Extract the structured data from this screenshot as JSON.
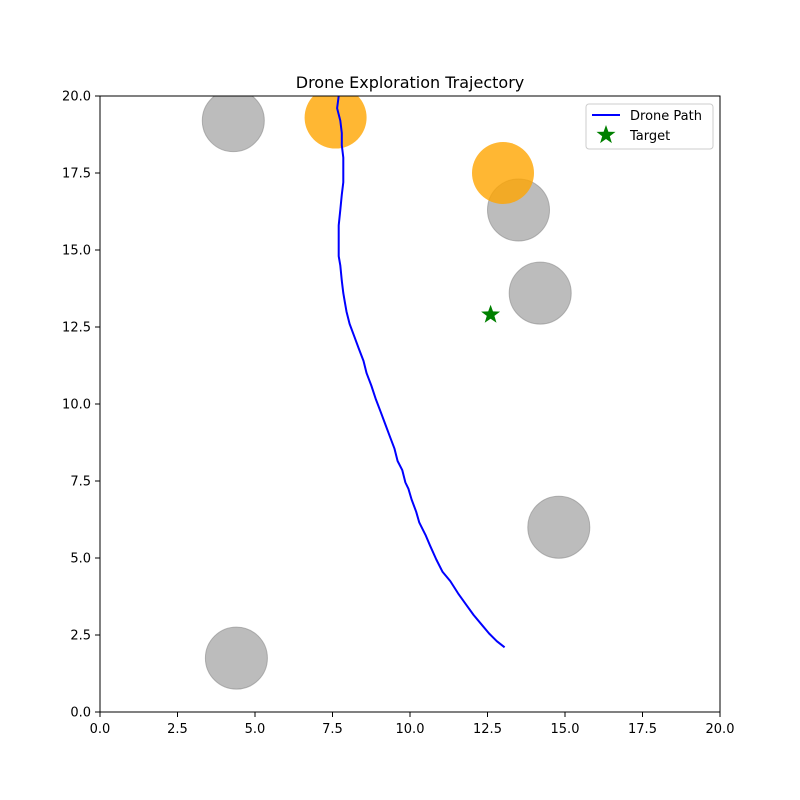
{
  "chart_data": {
    "type": "scatter",
    "title": "Drone Exploration Trajectory",
    "xlabel": "",
    "ylabel": "",
    "xlim": [
      0,
      20
    ],
    "ylim": [
      0,
      20
    ],
    "xticks": [
      "0.0",
      "2.5",
      "5.0",
      "7.5",
      "10.0",
      "12.5",
      "15.0",
      "17.5",
      "20.0"
    ],
    "yticks": [
      "0.0",
      "2.5",
      "5.0",
      "7.5",
      "10.0",
      "12.5",
      "15.0",
      "17.5",
      "20.0"
    ],
    "grid": false,
    "legend_position": "top-right",
    "series": [
      {
        "name": "Drone Path",
        "kind": "line",
        "color": "#0000ff",
        "points": [
          [
            13.05,
            2.1
          ],
          [
            12.8,
            2.3
          ],
          [
            12.55,
            2.55
          ],
          [
            12.3,
            2.85
          ],
          [
            12.05,
            3.15
          ],
          [
            11.8,
            3.5
          ],
          [
            11.55,
            3.85
          ],
          [
            11.3,
            4.25
          ],
          [
            11.05,
            4.55
          ],
          [
            10.85,
            4.95
          ],
          [
            10.65,
            5.4
          ],
          [
            10.5,
            5.75
          ],
          [
            10.3,
            6.15
          ],
          [
            10.2,
            6.5
          ],
          [
            10.05,
            6.9
          ],
          [
            9.95,
            7.25
          ],
          [
            9.85,
            7.45
          ],
          [
            9.75,
            7.85
          ],
          [
            9.6,
            8.15
          ],
          [
            9.5,
            8.55
          ],
          [
            9.35,
            8.95
          ],
          [
            9.2,
            9.35
          ],
          [
            9.05,
            9.75
          ],
          [
            8.9,
            10.15
          ],
          [
            8.75,
            10.6
          ],
          [
            8.6,
            11.0
          ],
          [
            8.5,
            11.4
          ],
          [
            8.35,
            11.8
          ],
          [
            8.2,
            12.2
          ],
          [
            8.05,
            12.6
          ],
          [
            7.95,
            13.0
          ],
          [
            7.9,
            13.3
          ],
          [
            7.85,
            13.6
          ],
          [
            7.8,
            14.0
          ],
          [
            7.75,
            14.5
          ],
          [
            7.7,
            14.8
          ],
          [
            7.7,
            15.3
          ],
          [
            7.7,
            15.8
          ],
          [
            7.75,
            16.3
          ],
          [
            7.8,
            16.8
          ],
          [
            7.85,
            17.2
          ],
          [
            7.85,
            17.6
          ],
          [
            7.85,
            18.0
          ],
          [
            7.8,
            18.4
          ],
          [
            7.8,
            18.8
          ],
          [
            7.75,
            19.2
          ],
          [
            7.65,
            19.6
          ],
          [
            7.7,
            20.0
          ]
        ]
      },
      {
        "name": "Target",
        "kind": "marker",
        "marker": "star",
        "color": "#008000",
        "points": [
          [
            12.6,
            12.9
          ]
        ]
      }
    ],
    "obstacles": [
      {
        "x": 4.3,
        "y": 19.2,
        "r": 1.0,
        "color": "#a0a0a0",
        "opacity": 0.7
      },
      {
        "x": 13.5,
        "y": 16.3,
        "r": 1.0,
        "color": "#a0a0a0",
        "opacity": 0.7
      },
      {
        "x": 14.2,
        "y": 13.6,
        "r": 1.0,
        "color": "#a0a0a0",
        "opacity": 0.7
      },
      {
        "x": 14.8,
        "y": 6.0,
        "r": 1.0,
        "color": "#a0a0a0",
        "opacity": 0.7
      },
      {
        "x": 4.4,
        "y": 1.75,
        "r": 1.0,
        "color": "#a0a0a0",
        "opacity": 0.7
      }
    ],
    "hazards": [
      {
        "x": 7.6,
        "y": 19.3,
        "r": 1.0,
        "color": "#ffa500",
        "opacity": 0.8
      },
      {
        "x": 13.0,
        "y": 17.5,
        "r": 1.0,
        "color": "#ffa500",
        "opacity": 0.8
      }
    ]
  }
}
